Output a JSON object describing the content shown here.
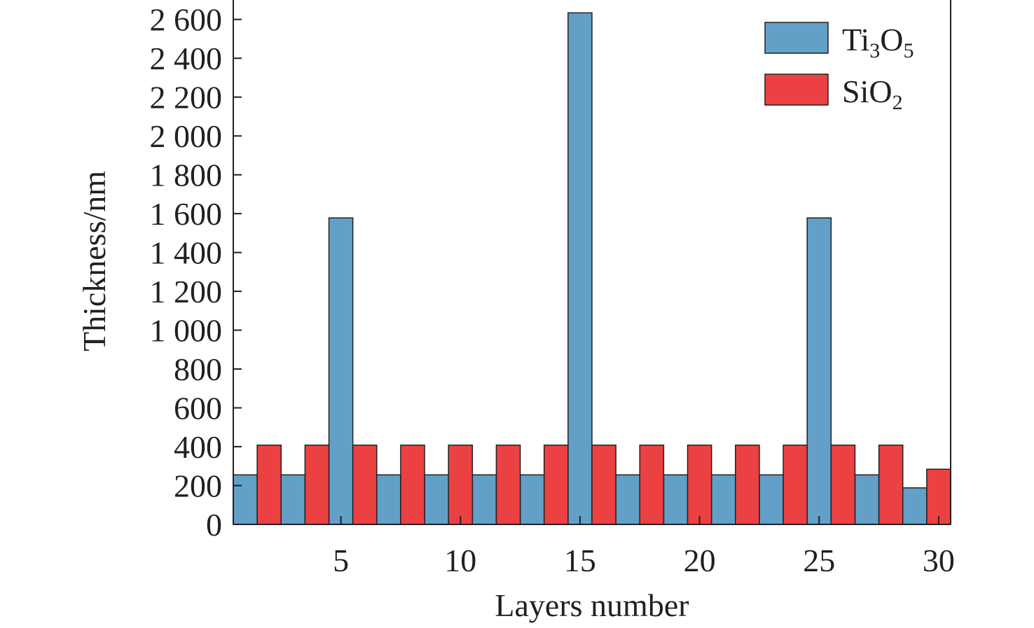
{
  "chart_data": {
    "type": "bar",
    "xlabel": "Layers number",
    "ylabel": "Thickness/nm",
    "xlim": [
      0.5,
      30.5
    ],
    "ylim": [
      0,
      2700
    ],
    "xticks": [
      5,
      10,
      15,
      20,
      25,
      30
    ],
    "yticks": [
      0,
      200,
      400,
      600,
      800,
      1000,
      1200,
      1400,
      1600,
      1800,
      2000,
      2200,
      2400,
      2600
    ],
    "ytick_labels": [
      "0",
      "200",
      "400",
      "600",
      "800",
      "1 000",
      "1 200",
      "1 400",
      "1 600",
      "1 800",
      "2 000",
      "2 200",
      "2 400",
      "2 600"
    ],
    "grid": false,
    "legend_position": "top-right",
    "series": [
      {
        "name": "Ti3O5",
        "legend_base": "Ti",
        "legend_sub1": "3",
        "legend_mid": "O",
        "legend_sub2": "5",
        "color": "#62a0c8",
        "x": [
          1,
          3,
          5,
          7,
          9,
          11,
          13,
          15,
          17,
          19,
          21,
          23,
          25,
          27,
          29
        ],
        "values": [
          255,
          255,
          1578,
          255,
          255,
          255,
          255,
          2634,
          255,
          255,
          255,
          255,
          1578,
          255,
          188
        ]
      },
      {
        "name": "SiO2",
        "legend_base": "SiO",
        "legend_sub1": "2",
        "legend_mid": "",
        "legend_sub2": "",
        "color": "#ec4143",
        "x": [
          2,
          4,
          6,
          8,
          10,
          12,
          14,
          16,
          18,
          20,
          22,
          24,
          26,
          28,
          30
        ],
        "values": [
          408,
          408,
          408,
          408,
          408,
          408,
          408,
          408,
          408,
          408,
          408,
          408,
          408,
          408,
          284
        ]
      }
    ]
  }
}
